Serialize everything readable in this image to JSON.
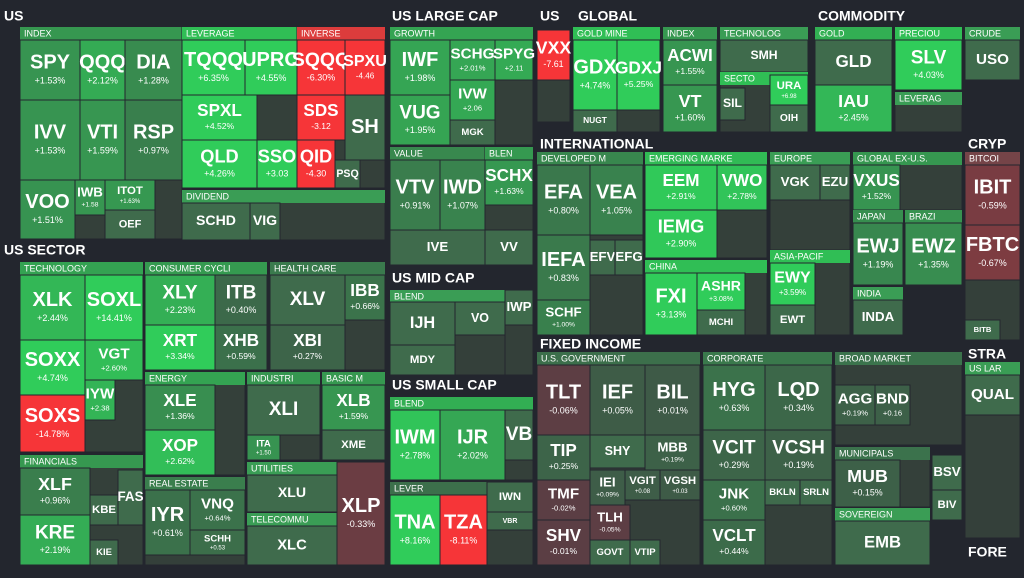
{
  "sections": [
    {
      "title": "US",
      "groups": [
        {
          "title": "INDEX",
          "tiles": [
            [
              "SPY",
              "+1.53%"
            ],
            [
              "QQQ",
              "+2.12%"
            ],
            [
              "DIA",
              "+1.28%"
            ],
            [
              "IVV",
              "+1.53%"
            ],
            [
              "VTI",
              "+1.59%"
            ],
            [
              "RSP",
              "+0.97%"
            ],
            [
              "VOO",
              "+1.51%"
            ],
            [
              "IWB",
              "+1.58"
            ],
            [
              "ITOT",
              "+1.63%"
            ],
            [
              "OEF"
            ]
          ]
        },
        {
          "title": "LEVERAGE",
          "tiles": [
            [
              "TQQQ",
              "+6.35%"
            ],
            [
              "UPRO",
              "+4.55%"
            ],
            [
              "SPXL",
              "+4.52%"
            ],
            [
              "QLD",
              "+4.26%"
            ],
            [
              "SSO",
              "+3.03"
            ]
          ]
        },
        {
          "title": "INVERSE",
          "tiles": [
            [
              "SQQQ",
              "-6.30%"
            ],
            [
              "SPXU",
              "-4.46"
            ],
            [
              "SDS",
              "-3.12"
            ],
            [
              "SH"
            ],
            [
              "QID",
              "-4.30"
            ],
            [
              "PSQ"
            ]
          ]
        },
        {
          "title": "DIVIDEND",
          "tiles": [
            [
              "SCHD"
            ],
            [
              "VIG"
            ]
          ]
        }
      ]
    },
    {
      "title": "US SECTOR",
      "groups": [
        {
          "title": "TECHNOLOGY",
          "tiles": [
            [
              "XLK",
              "+2.44%"
            ],
            [
              "SOXL",
              "+14.41%"
            ],
            [
              "SOXX",
              "+4.74%"
            ],
            [
              "VGT",
              "+2.60%"
            ],
            [
              "IYW",
              "+2.38"
            ],
            [
              "SOXS",
              "-14.78%"
            ]
          ]
        },
        {
          "title": "CONSUMER CYCLI",
          "tiles": [
            [
              "XLY",
              "+2.23%"
            ],
            [
              "ITB",
              "+0.40%"
            ],
            [
              "XRT",
              "+3.34%"
            ],
            [
              "XHB",
              "+0.59%"
            ]
          ]
        },
        {
          "title": "HEALTH CARE",
          "tiles": [
            [
              "XLV"
            ],
            [
              "IBB",
              "+0.66%"
            ],
            [
              "XBI",
              "+0.27%"
            ]
          ]
        },
        {
          "title": "ENERGY",
          "tiles": [
            [
              "XLE",
              "+1.36%"
            ],
            [
              "XOP",
              "+2.62%"
            ]
          ]
        },
        {
          "title": "INDUSTRI",
          "tiles": [
            [
              "XLI"
            ],
            [
              "ITA",
              "+1.50"
            ]
          ]
        },
        {
          "title": "BASIC M",
          "tiles": [
            [
              "XLB",
              "+1.59%"
            ],
            [
              "XME"
            ]
          ]
        },
        {
          "title": "FINANCIALS",
          "tiles": [
            [
              "XLF",
              "+0.96%"
            ],
            [
              "KRE",
              "+2.19%"
            ],
            [
              "KBE"
            ],
            [
              "FAS"
            ],
            [
              "KIE"
            ]
          ]
        },
        {
          "title": "REAL ESTATE",
          "tiles": [
            [
              "IYR",
              "+0.61%"
            ],
            [
              "VNQ",
              "+0.64%"
            ],
            [
              "SCHH",
              "+0.53"
            ]
          ]
        },
        {
          "title": "UTILITIES",
          "tiles": [
            [
              "XLU"
            ]
          ]
        },
        {
          "title": "TELECOMMU",
          "tiles": [
            [
              "XLC"
            ]
          ]
        },
        {
          "tiles": [
            [
              "XLP",
              "-0.33%"
            ]
          ]
        }
      ]
    },
    {
      "title": "US LARGE CAP",
      "groups": [
        {
          "title": "GROWTH",
          "tiles": [
            [
              "IWF",
              "+1.98%"
            ],
            [
              "SCHG",
              "+2.01%"
            ],
            [
              "SPYG",
              "+2.11"
            ],
            [
              "IVW",
              "+2.06"
            ],
            [
              "MGK"
            ],
            [
              "VUG",
              "+1.95%"
            ]
          ]
        },
        {
          "title": "VALUE",
          "tiles": [
            [
              "VTV",
              "+0.91%"
            ],
            [
              "IWD",
              "+1.07%"
            ],
            [
              "IVE"
            ]
          ]
        },
        {
          "title": "BLEN",
          "tiles": [
            [
              "SCHX",
              "+1.63%"
            ],
            [
              "VV"
            ]
          ]
        }
      ]
    },
    {
      "title": "US MID CAP",
      "groups": [
        {
          "title": "BLEND",
          "tiles": [
            [
              "IJH"
            ],
            [
              "VO"
            ],
            [
              "MDY"
            ]
          ]
        },
        {
          "tiles": [
            [
              "IWP"
            ]
          ]
        }
      ]
    },
    {
      "title": "US SMALL CAP",
      "groups": [
        {
          "title": "BLEND",
          "tiles": [
            [
              "IWM",
              "+2.78%"
            ],
            [
              "IJR",
              "+2.02%"
            ],
            [
              "VB"
            ]
          ]
        },
        {
          "title": "LEVER",
          "tiles": [
            [
              "TNA",
              "+8.16%"
            ],
            [
              "TZA",
              "-8.11%"
            ]
          ]
        },
        {
          "tiles": [
            [
              "IWN"
            ],
            [
              "VBR"
            ]
          ]
        }
      ]
    },
    {
      "title": "US",
      "groups": [
        {
          "tiles": [
            [
              "VXX",
              "-7.61"
            ]
          ]
        }
      ]
    },
    {
      "title": "GLOBAL",
      "groups": [
        {
          "title": "GOLD MINE",
          "tiles": [
            [
              "GDX",
              "+4.74%"
            ],
            [
              "GDXJ",
              "+5.25%"
            ],
            [
              "NUGT"
            ]
          ]
        },
        {
          "title": "INDEX",
          "tiles": [
            [
              "ACWI",
              "+1.55%"
            ],
            [
              "VT",
              "+1.60%"
            ]
          ]
        },
        {
          "title": "TECHNOLOG",
          "tiles": [
            [
              "SMH"
            ]
          ]
        },
        {
          "title": "SECTO",
          "tiles": [
            [
              "SIL"
            ],
            [
              "URA",
              "+6.98"
            ],
            [
              "OIH"
            ]
          ]
        }
      ]
    },
    {
      "title": "COMMODITY",
      "groups": [
        {
          "title": "GOLD",
          "tiles": [
            [
              "GLD"
            ],
            [
              "IAU",
              "+2.45%"
            ]
          ]
        },
        {
          "title": "PRECIOU",
          "tiles": [
            [
              "SLV",
              "+4.03%"
            ]
          ]
        },
        {
          "title": "LEVERAG",
          "tiles": []
        },
        {
          "title": "CRUDE",
          "tiles": [
            [
              "USO"
            ]
          ]
        }
      ]
    },
    {
      "title": "INTERNATIONAL",
      "groups": [
        {
          "title": "DEVELOPED M",
          "tiles": [
            [
              "EFA",
              "+0.80%"
            ],
            [
              "VEA",
              "+1.05%"
            ],
            [
              "IEFA",
              "+0.83%"
            ],
            [
              "EFV"
            ],
            [
              "EFG"
            ],
            [
              "SCHF",
              "+1.00%"
            ]
          ]
        },
        {
          "title": "EMERGING MARKE",
          "tiles": [
            [
              "EEM",
              "+2.91%"
            ],
            [
              "VWO",
              "+2.78%"
            ],
            [
              "IEMG",
              "+2.90%"
            ]
          ]
        },
        {
          "title": "CHINA",
          "tiles": [
            [
              "FXI",
              "+3.13%"
            ],
            [
              "ASHR",
              "+3.08%"
            ],
            [
              "MCHI"
            ]
          ]
        },
        {
          "title": "EUROPE",
          "tiles": [
            [
              "VGK"
            ],
            [
              "EZU"
            ]
          ]
        },
        {
          "title": "ASIA-PACIF",
          "tiles": [
            [
              "EWY",
              "+3.59%"
            ],
            [
              "EWT"
            ]
          ]
        },
        {
          "title": "GLOBAL EX-U.S.",
          "tiles": [
            [
              "VXUS",
              "+1.52%"
            ]
          ]
        },
        {
          "title": "JAPAN",
          "tiles": [
            [
              "EWJ",
              "+1.19%"
            ]
          ]
        },
        {
          "title": "BRAZI",
          "tiles": [
            [
              "EWZ",
              "+1.35%"
            ]
          ]
        },
        {
          "title": "INDIA",
          "tiles": [
            [
              "INDA"
            ]
          ]
        }
      ]
    },
    {
      "title": "CRYP",
      "groups": [
        {
          "title": "BITCOI",
          "tiles": [
            [
              "IBIT",
              "-0.59%"
            ],
            [
              "FBTC",
              "-0.67%"
            ],
            [
              "BITB"
            ]
          ]
        }
      ]
    },
    {
      "title": "STRA",
      "groups": [
        {
          "title": "US LAR",
          "tiles": [
            [
              "QUAL"
            ]
          ]
        }
      ]
    },
    {
      "title": "FORE",
      "groups": []
    },
    {
      "title": "FIXED INCOME",
      "groups": [
        {
          "title": "U.S. GOVERNMENT",
          "tiles": [
            [
              "TLT",
              "-0.06%"
            ],
            [
              "IEF",
              "+0.05%"
            ],
            [
              "BIL",
              "+0.01%"
            ],
            [
              "TIP",
              "+0.25%"
            ],
            [
              "SHY"
            ],
            [
              "MBB",
              "+0.19%"
            ],
            [
              "IEI",
              "+0.09%"
            ],
            [
              "VGIT",
              "+0.08"
            ],
            [
              "VGSH",
              "+0.03"
            ],
            [
              "TMF",
              "-0.02%"
            ],
            [
              "TLH",
              "-0.05%"
            ],
            [
              "SHV",
              "-0.01%"
            ],
            [
              "GOVT"
            ],
            [
              "VTIP"
            ]
          ]
        },
        {
          "title": "CORPORATE",
          "tiles": [
            [
              "HYG",
              "+0.63%"
            ],
            [
              "LQD",
              "+0.34%"
            ],
            [
              "VCIT",
              "+0.29%"
            ],
            [
              "VCSH",
              "+0.19%"
            ],
            [
              "JNK",
              "+0.60%"
            ],
            [
              "BKLN"
            ],
            [
              "SRLN"
            ],
            [
              "VCLT",
              "+0.44%"
            ]
          ]
        },
        {
          "title": "BROAD MARKET",
          "tiles": [
            [
              "AGG",
              "+0.19%"
            ],
            [
              "BND",
              "+0.16"
            ]
          ]
        },
        {
          "title": "MUNICIPALS",
          "tiles": [
            [
              "MUB",
              "+0.15%"
            ]
          ]
        },
        {
          "title": "SOVEREIGN",
          "tiles": [
            [
              "EMB"
            ]
          ]
        },
        {
          "tiles": [
            [
              "BSV"
            ],
            [
              "BIV"
            ]
          ]
        }
      ]
    }
  ]
}
